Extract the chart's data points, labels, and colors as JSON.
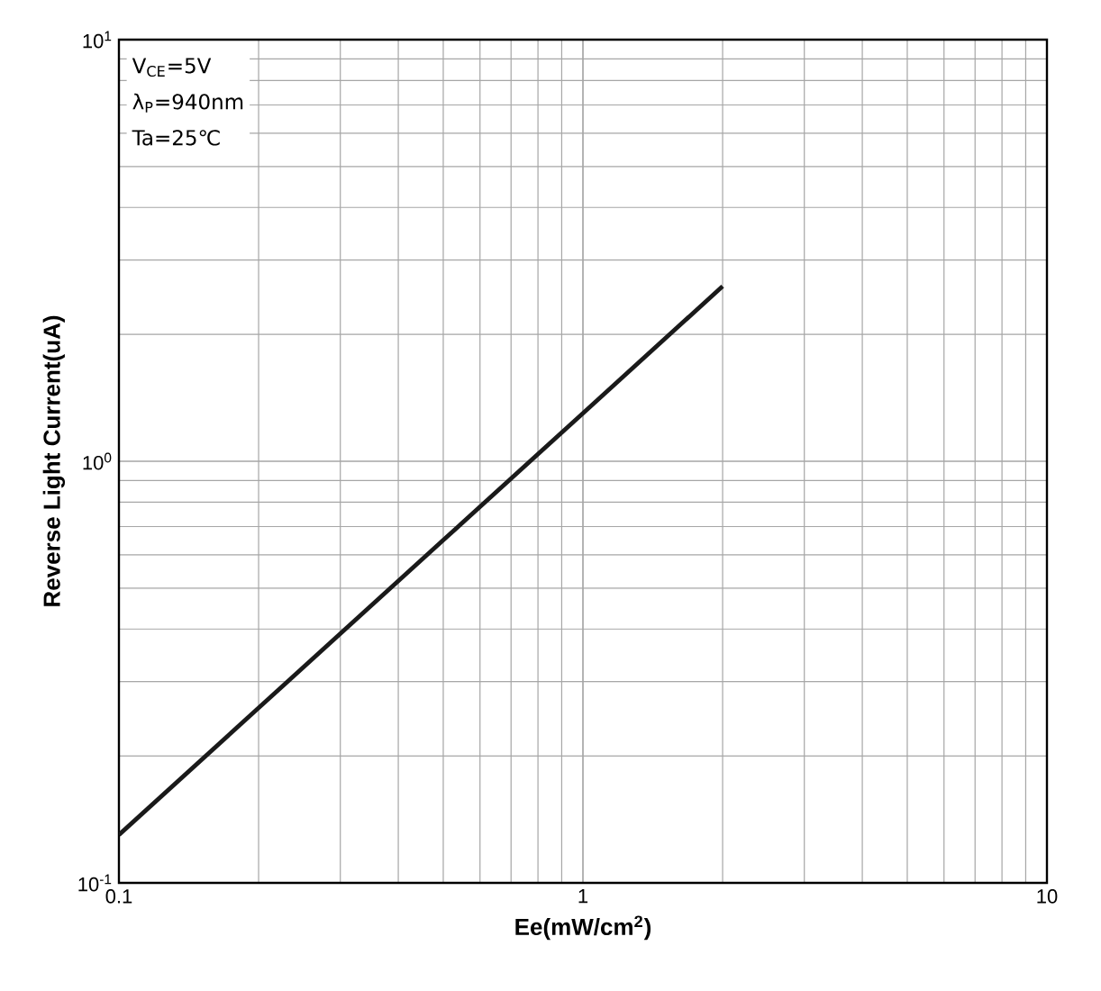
{
  "chart_data": {
    "type": "line",
    "xlabel": "Ee(mW/cm$^{2}$)",
    "ylabel": "Reverse Light Current(uA)",
    "annotations": [
      "V$_{CE}$=5V",
      "λ$_{P}$=940nm",
      "Ta=25℃"
    ],
    "log": "xy",
    "grid": true,
    "marker": "none",
    "line_style": "solid",
    "xlim": [
      0.1,
      10
    ],
    "ylim": [
      0.1,
      10
    ],
    "xticks": [
      0.1,
      1,
      10
    ],
    "yticks": [
      {
        "value": 0.1,
        "label": "10$^{-1}$"
      },
      {
        "value": 1,
        "label": "10$^{0}$"
      },
      {
        "value": 10,
        "label": "10$^{1}$"
      }
    ],
    "series": [
      {
        "color": "#1a1a1a",
        "x": [
          0.1,
          0.2,
          0.5,
          1,
          2
        ],
        "values": [
          0.13,
          0.26,
          0.65,
          1.3,
          2.6
        ]
      }
    ]
  }
}
